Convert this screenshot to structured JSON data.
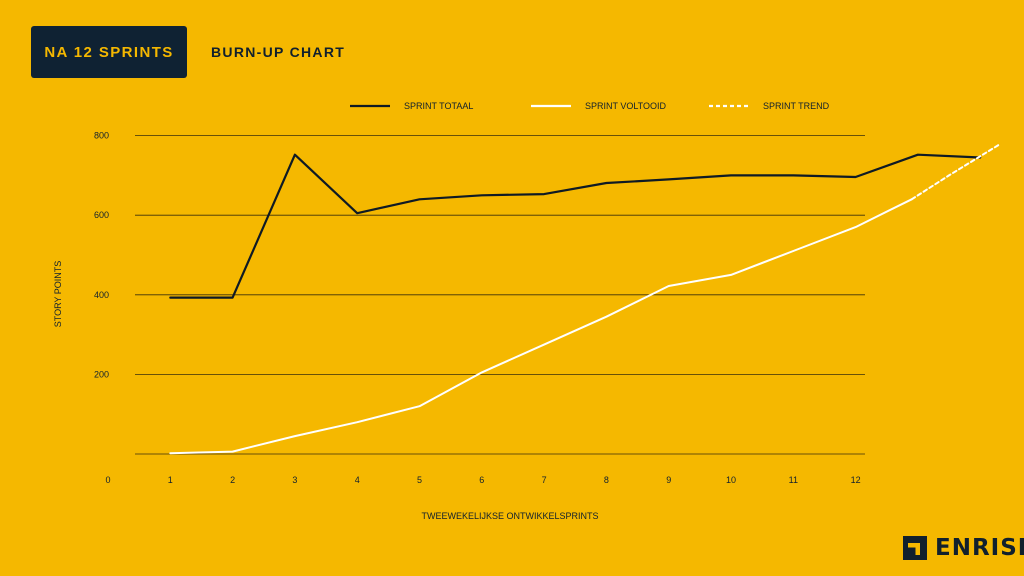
{
  "header": {
    "badge": "NA 12 SPRINTS",
    "title": "BURN-UP CHART"
  },
  "brand": {
    "name": "ENRISE"
  },
  "colors": {
    "background": "#f5b800",
    "dark": "#0f2233",
    "line_totaal": "#0f1a24",
    "line_voltooid": "#ffffff"
  },
  "chart_data": {
    "type": "line",
    "xlabel": "TWEEWEKELIJKSE ONTWIKKELSPRINTS",
    "ylabel": "STORY POINTS",
    "x_ticks": [
      "0",
      "1",
      "2",
      "3",
      "4",
      "5",
      "6",
      "7",
      "8",
      "9",
      "10",
      "11",
      "12"
    ],
    "y_ticks": [
      "200",
      "400",
      "600",
      "800"
    ],
    "ylim": [
      0,
      800
    ],
    "grid": true,
    "legend_position": "top",
    "series": [
      {
        "name": "SPRINT TOTAAL",
        "style": "solid",
        "x": [
          1,
          2,
          3,
          4,
          5,
          6,
          7,
          8,
          9,
          10,
          11,
          12,
          13,
          14
        ],
        "y": [
          393,
          393,
          752,
          605,
          640,
          650,
          653,
          681,
          690,
          700,
          700,
          696,
          752,
          745
        ]
      },
      {
        "name": "SPRINT VOLTOOID",
        "style": "solid",
        "x": [
          1,
          2,
          3,
          4,
          5,
          6,
          7,
          8,
          9,
          10,
          11,
          12,
          12.9
        ],
        "y": [
          2,
          6,
          45,
          80,
          120,
          205,
          275,
          345,
          422,
          450,
          510,
          570,
          640
        ]
      },
      {
        "name": "SPRINT TREND",
        "style": "dashed",
        "x": [
          12.9,
          13.5,
          14.3
        ],
        "y": [
          640,
          700,
          777
        ]
      }
    ]
  }
}
